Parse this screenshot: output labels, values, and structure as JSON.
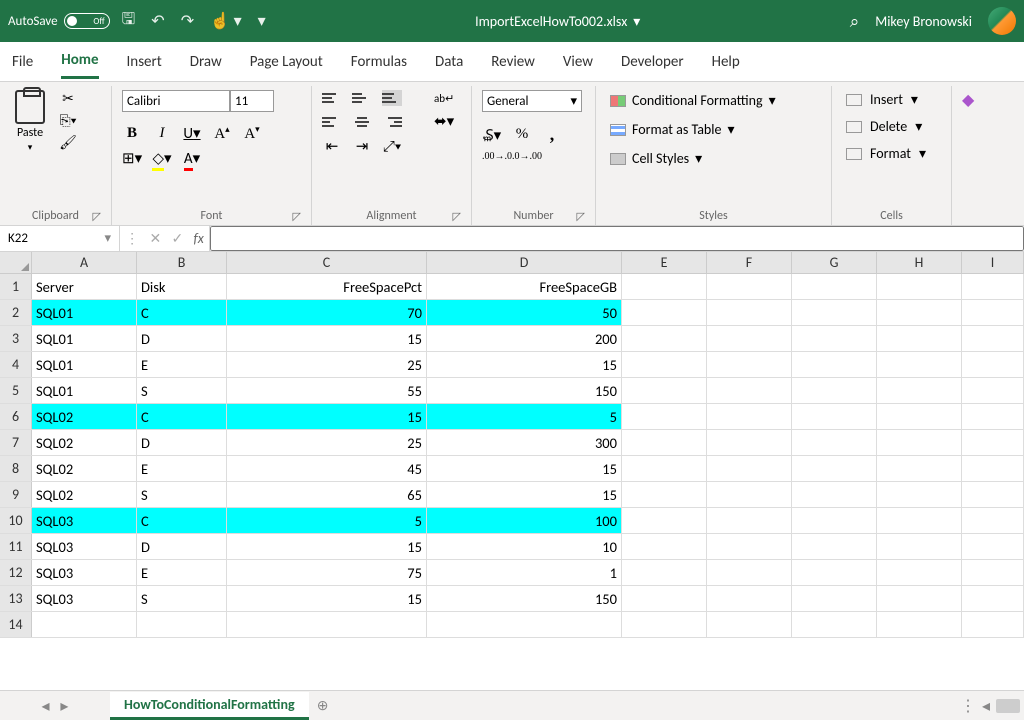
{
  "titlebar": {
    "autosave_label": "AutoSave",
    "autosave_state": "Off",
    "filename": "ImportExcelHowTo002.xlsx",
    "user": "Mikey Bronowski"
  },
  "ribbon_tabs": [
    "File",
    "Home",
    "Insert",
    "Draw",
    "Page Layout",
    "Formulas",
    "Data",
    "Review",
    "View",
    "Developer",
    "Help"
  ],
  "active_tab": "Home",
  "ribbon": {
    "clipboard": {
      "paste": "Paste",
      "label": "Clipboard"
    },
    "font": {
      "name": "Calibri",
      "size": "11",
      "label": "Font",
      "B": "B",
      "I": "I",
      "U": "U"
    },
    "alignment": {
      "label": "Alignment",
      "wrap": "ab"
    },
    "number": {
      "format": "General",
      "label": "Number"
    },
    "styles": {
      "cf": "Conditional Formatting",
      "fat": "Format as Table",
      "cs": "Cell Styles",
      "label": "Styles"
    },
    "cells": {
      "insert": "Insert",
      "delete": "Delete",
      "format": "Format",
      "label": "Cells"
    }
  },
  "namebox": "K22",
  "columns": {
    "letters": [
      "A",
      "B",
      "C",
      "D",
      "E",
      "F",
      "G",
      "H",
      "I"
    ],
    "widths": [
      105,
      90,
      200,
      195,
      85,
      85,
      85,
      85,
      62
    ]
  },
  "headers": [
    "Server",
    "Disk",
    "FreeSpacePct",
    "FreeSpaceGB"
  ],
  "data_rows": [
    {
      "server": "SQL01",
      "disk": "C",
      "pct": "70",
      "gb": "50",
      "hl": true
    },
    {
      "server": "SQL01",
      "disk": "D",
      "pct": "15",
      "gb": "200",
      "hl": false
    },
    {
      "server": "SQL01",
      "disk": "E",
      "pct": "25",
      "gb": "15",
      "hl": false
    },
    {
      "server": "SQL01",
      "disk": "S",
      "pct": "55",
      "gb": "150",
      "hl": false
    },
    {
      "server": "SQL02",
      "disk": "C",
      "pct": "15",
      "gb": "5",
      "hl": true
    },
    {
      "server": "SQL02",
      "disk": "D",
      "pct": "25",
      "gb": "300",
      "hl": false
    },
    {
      "server": "SQL02",
      "disk": "E",
      "pct": "45",
      "gb": "15",
      "hl": false
    },
    {
      "server": "SQL02",
      "disk": "S",
      "pct": "65",
      "gb": "15",
      "hl": false
    },
    {
      "server": "SQL03",
      "disk": "C",
      "pct": "5",
      "gb": "100",
      "hl": true
    },
    {
      "server": "SQL03",
      "disk": "D",
      "pct": "15",
      "gb": "10",
      "hl": false
    },
    {
      "server": "SQL03",
      "disk": "E",
      "pct": "75",
      "gb": "1",
      "hl": false
    },
    {
      "server": "SQL03",
      "disk": "S",
      "pct": "15",
      "gb": "150",
      "hl": false
    }
  ],
  "empty_rows": [
    14
  ],
  "highlight_color": "#00ffff",
  "sheet_tab": "HowToConditionalFormatting"
}
